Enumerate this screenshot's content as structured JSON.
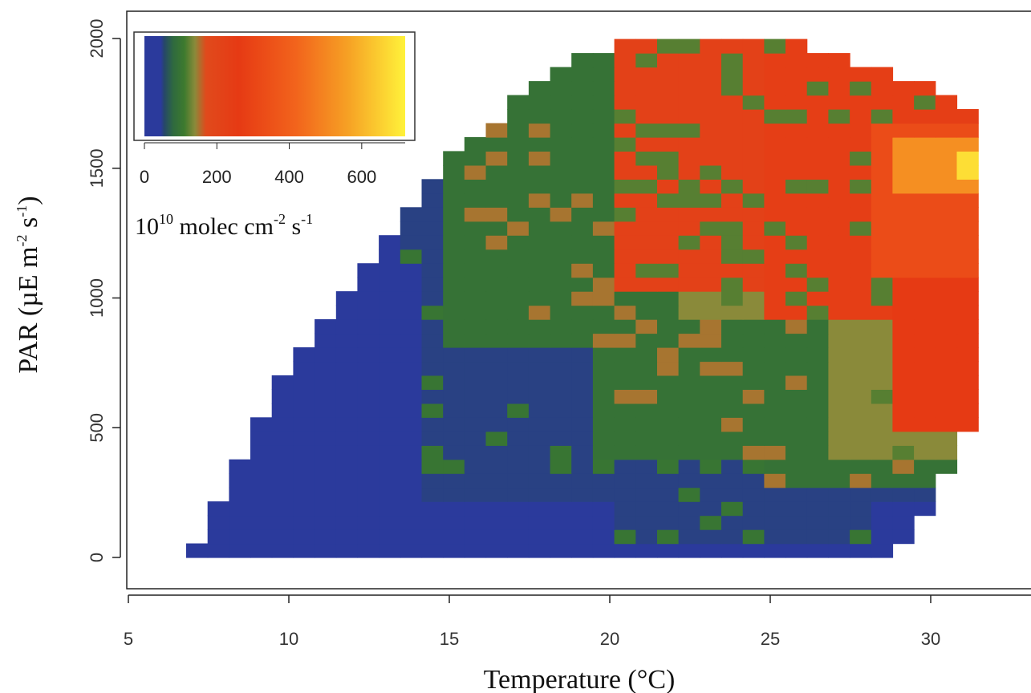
{
  "chart_data": {
    "type": "heatmap",
    "title": "",
    "xlabel": "Temperature (°C)",
    "ylabel_parts": {
      "base": "PAR (µE m",
      "sup1": "-2",
      "mid": " s",
      "sup2": "-1",
      "end": ")"
    },
    "xlim": [
      5,
      33
    ],
    "ylim": [
      -120,
      2110
    ],
    "x_ticks": [
      5,
      10,
      15,
      20,
      25,
      30
    ],
    "y_ticks": [
      0,
      500,
      1000,
      1500,
      2000
    ],
    "legend": {
      "placement": "top-left",
      "ticks": [
        0,
        200,
        400,
        600
      ],
      "range": [
        0,
        720
      ],
      "title_parts": {
        "base": "10",
        "sup1": "10",
        "mid": " molec cm",
        "sup2": "-2",
        "mid2": " s",
        "sup3": "-1"
      }
    },
    "grid": false,
    "cell_size": {
      "temperature": 0.667,
      "par": 54
    },
    "color_scale": [
      {
        "value": 0,
        "color": "#2b3a9c"
      },
      {
        "value": 45,
        "color": "#2b3a9c"
      },
      {
        "value": 55,
        "color": "#26476a"
      },
      {
        "value": 80,
        "color": "#2f6a3e"
      },
      {
        "value": 110,
        "color": "#3d7a2e"
      },
      {
        "value": 140,
        "color": "#8a8a3a"
      },
      {
        "value": 170,
        "color": "#e04a1c"
      },
      {
        "value": 260,
        "color": "#e63a14"
      },
      {
        "value": 420,
        "color": "#f2641c"
      },
      {
        "value": 560,
        "color": "#f6a024"
      },
      {
        "value": 720,
        "color": "#fff23a"
      }
    ],
    "envelope_t_min": [
      [
        0,
        6.8
      ],
      [
        160,
        7.5
      ],
      [
        320,
        8.1
      ],
      [
        430,
        8.8
      ],
      [
        580,
        9.4
      ],
      [
        730,
        10.0
      ],
      [
        830,
        10.7
      ],
      [
        940,
        11.4
      ],
      [
        1050,
        12.0
      ],
      [
        1160,
        12.7
      ],
      [
        1270,
        13.4
      ],
      [
        1380,
        14.0
      ],
      [
        1490,
        14.7
      ],
      [
        1590,
        15.4
      ],
      [
        1700,
        16.7
      ],
      [
        1810,
        17.4
      ],
      [
        1880,
        18.0
      ],
      [
        1930,
        19.2
      ],
      [
        1980,
        20.6
      ]
    ],
    "envelope_t_max": [
      [
        0,
        28.4
      ],
      [
        50,
        29.0
      ],
      [
        100,
        29.6
      ],
      [
        230,
        30.0
      ],
      [
        420,
        31.0
      ],
      [
        800,
        31.8
      ],
      [
        1680,
        31.8
      ],
      [
        1790,
        30.8
      ],
      [
        1850,
        29.4
      ],
      [
        1900,
        28.0
      ],
      [
        1950,
        26.0
      ],
      [
        1990,
        25.8
      ]
    ],
    "regions": [
      {
        "value": 20,
        "t_range": [
          6.8,
          32
        ],
        "par_range": [
          0,
          2000
        ]
      },
      {
        "value": 50,
        "t_range": [
          14.0,
          32
        ],
        "par_range": [
          200,
          2000
        ]
      },
      {
        "value": 50,
        "t_range": [
          13.4,
          16
        ],
        "par_range": [
          1150,
          1800
        ]
      },
      {
        "value": 50,
        "t_range": [
          20.0,
          28
        ],
        "par_range": [
          60,
          200
        ]
      },
      {
        "value": 95,
        "t_range": [
          15.0,
          32
        ],
        "par_range": [
          800,
          2000
        ]
      },
      {
        "value": 95,
        "t_range": [
          19.5,
          32
        ],
        "par_range": [
          380,
          800
        ]
      },
      {
        "value": 95,
        "t_range": [
          25.0,
          32
        ],
        "par_range": [
          250,
          400
        ]
      },
      {
        "value": 140,
        "t_range": [
          22.0,
          32
        ],
        "par_range": [
          900,
          1950
        ]
      },
      {
        "value": 140,
        "t_range": [
          26.5,
          32
        ],
        "par_range": [
          400,
          900
        ]
      },
      {
        "value": 220,
        "t_range": [
          20.0,
          32
        ],
        "par_range": [
          1050,
          1980
        ]
      },
      {
        "value": 240,
        "t_range": [
          25.0,
          32
        ],
        "par_range": [
          900,
          1980
        ]
      },
      {
        "value": 260,
        "t_range": [
          28.5,
          32
        ],
        "par_range": [
          500,
          1700
        ]
      },
      {
        "value": 330,
        "t_range": [
          28.0,
          32
        ],
        "par_range": [
          1100,
          1700
        ]
      },
      {
        "value": 520,
        "t_range": [
          29.0,
          32
        ],
        "par_range": [
          1400,
          1600
        ]
      },
      {
        "value": 680,
        "t_range": [
          30.5,
          31.8
        ],
        "par_range": [
          1450,
          1560
        ]
      }
    ]
  }
}
